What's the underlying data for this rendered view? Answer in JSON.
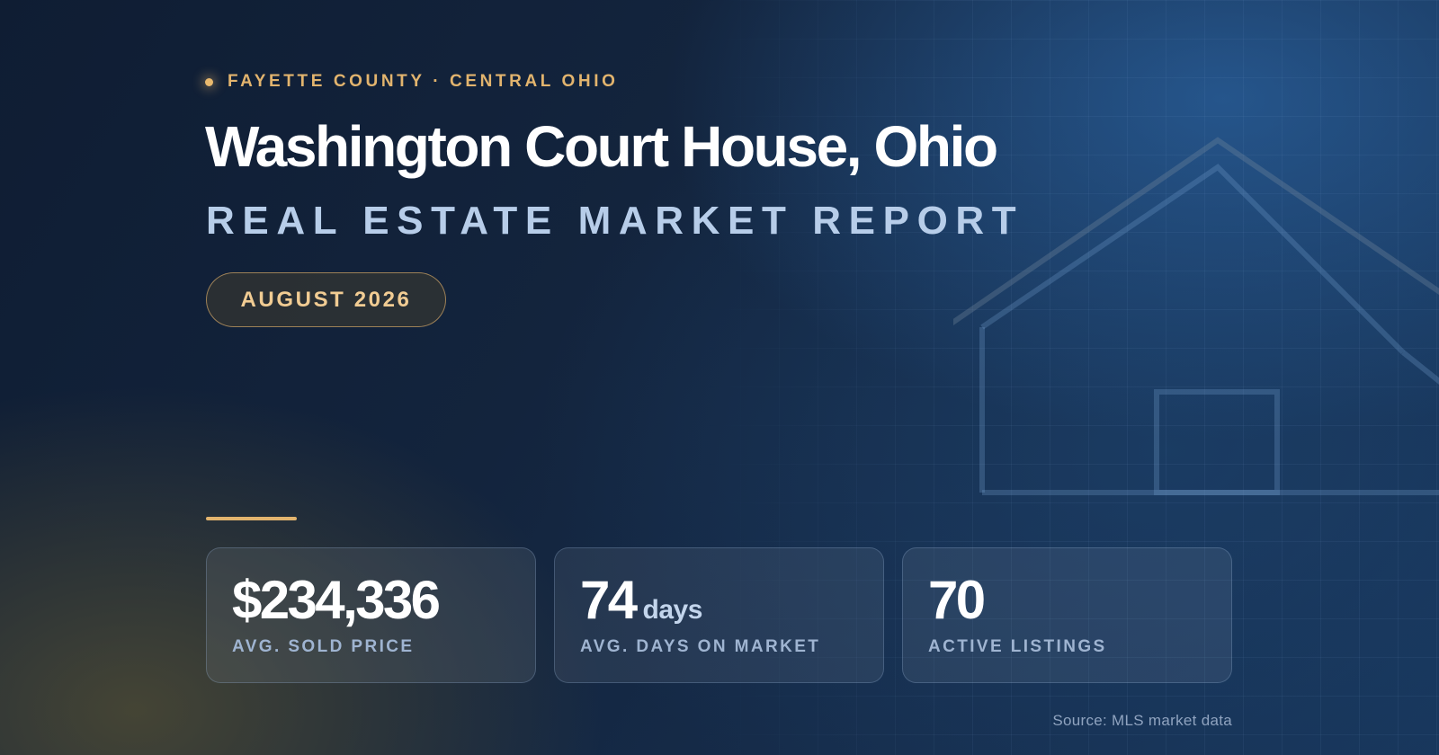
{
  "header": {
    "region": "FAYETTE COUNTY · CENTRAL OHIO",
    "title": "Washington Court House, Ohio",
    "subtitle": "REAL ESTATE MARKET REPORT",
    "date_badge": "AUGUST 2026"
  },
  "stats": [
    {
      "value": "$234,336",
      "unit": "",
      "label": "AVG. SOLD PRICE"
    },
    {
      "value": "74",
      "unit": "days",
      "label": "AVG. DAYS ON MARKET"
    },
    {
      "value": "70",
      "unit": "",
      "label": "ACTIVE LISTINGS"
    }
  ],
  "footer": {
    "source": "Source: MLS market data"
  },
  "icons": {
    "region_marker": "dot-icon",
    "background": "house-outline-icon"
  },
  "colors": {
    "accent_gold": "#e2b46e",
    "title": "#ffffff",
    "subtitle": "#b7cde9",
    "background_dark": "#0f1d33",
    "background_blue": "#17355a"
  }
}
